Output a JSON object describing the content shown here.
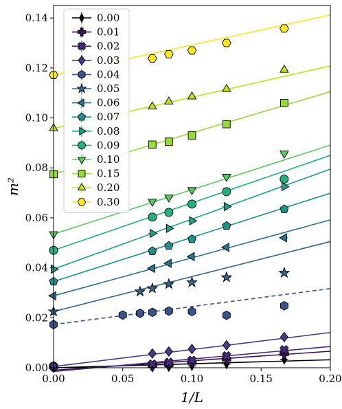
{
  "chart_data": {
    "type": "scatter",
    "xlabel": "1/L",
    "ylabel": "m²",
    "xlim": [
      0.0,
      0.2
    ],
    "ylim": [
      0.0,
      0.145
    ],
    "x_ticks": [
      0.0,
      0.05,
      0.1,
      0.15,
      0.2
    ],
    "x_tick_labels": [
      "0.00",
      "0.05",
      "0.10",
      "0.15",
      "0.20"
    ],
    "y_ticks": [
      0.0,
      0.02,
      0.04,
      0.06,
      0.08,
      0.1,
      0.12,
      0.14
    ],
    "y_tick_labels": [
      "0.00",
      "0.02",
      "0.04",
      "0.06",
      "0.08",
      "0.10",
      "0.12",
      "0.14"
    ],
    "grid": false,
    "legend_position": "top-left",
    "series": [
      {
        "name": "0.00",
        "marker": "diamond-thin",
        "color": "#000000",
        "x": [
          0.0,
          0.0714,
          0.0833,
          0.1,
          0.125,
          0.1667
        ],
        "y": [
          0.0,
          0.0002,
          0.0004,
          0.0008,
          0.0015,
          0.0033
        ],
        "fit": {
          "intercept": 0.0,
          "slope": 0.016,
          "dashed": false
        }
      },
      {
        "name": "0.01",
        "marker": "plus",
        "color": "#3b0f53",
        "x": [
          0.0,
          0.0714,
          0.0833,
          0.1,
          0.125,
          0.1667
        ],
        "y": [
          0.0003,
          0.0008,
          0.0012,
          0.002,
          0.0033,
          0.0055
        ],
        "fit": {
          "intercept": -0.001,
          "slope": 0.038,
          "dashed": false
        }
      },
      {
        "name": "0.02",
        "marker": "x-filled",
        "color": "#482b7c",
        "x": [
          0.0,
          0.0714,
          0.0833,
          0.1,
          0.125,
          0.1667
        ],
        "y": [
          0.0005,
          0.0015,
          0.0022,
          0.003,
          0.0048,
          0.0072
        ],
        "fit": {
          "intercept": -0.0015,
          "slope": 0.05,
          "dashed": false
        }
      },
      {
        "name": "0.03",
        "marker": "diamond",
        "color": "#433e85",
        "x": [
          0.0,
          0.0714,
          0.0833,
          0.1,
          0.125,
          0.1667
        ],
        "y": [
          0.0008,
          0.0057,
          0.0065,
          0.0075,
          0.009,
          0.0123
        ],
        "fit": {
          "intercept": 0.0005,
          "slope": 0.068,
          "dashed": false
        }
      },
      {
        "name": "0.04",
        "marker": "hexagon",
        "color": "#3b528b",
        "x": [
          0.0,
          0.05,
          0.0625,
          0.0714,
          0.0833,
          0.1,
          0.125,
          0.1667
        ],
        "y": [
          0.0173,
          0.0211,
          0.0218,
          0.0222,
          0.0227,
          0.0225,
          0.021,
          0.0248
        ],
        "fit": {
          "intercept": 0.0173,
          "slope": 0.072,
          "dashed": true
        }
      },
      {
        "name": "0.05",
        "marker": "star",
        "color": "#33638d",
        "x": [
          0.0,
          0.0625,
          0.0714,
          0.0833,
          0.1,
          0.125,
          0.1667
        ],
        "y": [
          0.0225,
          0.0305,
          0.0318,
          0.0335,
          0.0342,
          0.0362,
          0.038
        ],
        "fit": {
          "intercept": 0.0225,
          "slope": 0.14,
          "dashed": false
        }
      },
      {
        "name": "0.06",
        "marker": "triangle-left",
        "color": "#2c728e",
        "x": [
          0.0,
          0.0714,
          0.0833,
          0.1,
          0.125,
          0.1667
        ],
        "y": [
          0.0288,
          0.0398,
          0.0418,
          0.0445,
          0.0482,
          0.052
        ],
        "fit": {
          "intercept": 0.0288,
          "slope": 0.152,
          "dashed": false
        }
      },
      {
        "name": "0.07",
        "marker": "pentagon",
        "color": "#21918c",
        "x": [
          0.0,
          0.0714,
          0.0833,
          0.1,
          0.125,
          0.1667
        ],
        "y": [
          0.0345,
          0.0467,
          0.0488,
          0.0515,
          0.0568,
          0.0635
        ],
        "fit": {
          "intercept": 0.0345,
          "slope": 0.177,
          "dashed": false
        }
      },
      {
        "name": "0.08",
        "marker": "triangle-right",
        "color": "#1fa088",
        "x": [
          0.0,
          0.0714,
          0.0833,
          0.1,
          0.125,
          0.1667
        ],
        "y": [
          0.0395,
          0.0538,
          0.0558,
          0.0588,
          0.0645,
          0.0725
        ],
        "fit": {
          "intercept": 0.0395,
          "slope": 0.2,
          "dashed": false
        }
      },
      {
        "name": "0.09",
        "marker": "circle",
        "color": "#28ae80",
        "x": [
          0.0,
          0.0714,
          0.0833,
          0.1,
          0.125,
          0.1667
        ],
        "y": [
          0.047,
          0.0603,
          0.0622,
          0.0655,
          0.0705,
          0.0755
        ],
        "fit": {
          "intercept": 0.047,
          "slope": 0.19,
          "dashed": false
        }
      },
      {
        "name": "0.10",
        "marker": "triangle-down",
        "color": "#5ec962",
        "x": [
          0.0,
          0.0714,
          0.0833,
          0.1,
          0.125,
          0.1667
        ],
        "y": [
          0.0535,
          0.0665,
          0.0682,
          0.0712,
          0.0765,
          0.0858
        ],
        "fit": {
          "intercept": 0.0535,
          "slope": 0.178,
          "dashed": false
        }
      },
      {
        "name": "0.15",
        "marker": "square",
        "color": "#95d840",
        "x": [
          0.0,
          0.0714,
          0.0833,
          0.1,
          0.125,
          0.1667
        ],
        "y": [
          0.0775,
          0.0893,
          0.0905,
          0.093,
          0.0975,
          0.106
        ],
        "fit": {
          "intercept": 0.0775,
          "slope": 0.165,
          "dashed": false
        }
      },
      {
        "name": "0.20",
        "marker": "triangle-up",
        "color": "#c2df23",
        "x": [
          0.0,
          0.0714,
          0.0833,
          0.1,
          0.125,
          0.1667
        ],
        "y": [
          0.0958,
          0.1045,
          0.1065,
          0.1085,
          0.1115,
          0.1192
        ],
        "fit": {
          "intercept": 0.0958,
          "slope": 0.125,
          "dashed": false
        }
      },
      {
        "name": "0.30",
        "marker": "hexagon-alt",
        "color": "#fde725",
        "x": [
          0.0,
          0.0714,
          0.0833,
          0.1,
          0.125,
          0.1667
        ],
        "y": [
          0.1172,
          0.1238,
          0.1255,
          0.127,
          0.13,
          0.1358
        ],
        "fit": {
          "intercept": 0.1172,
          "slope": 0.12,
          "dashed": false
        }
      }
    ]
  }
}
